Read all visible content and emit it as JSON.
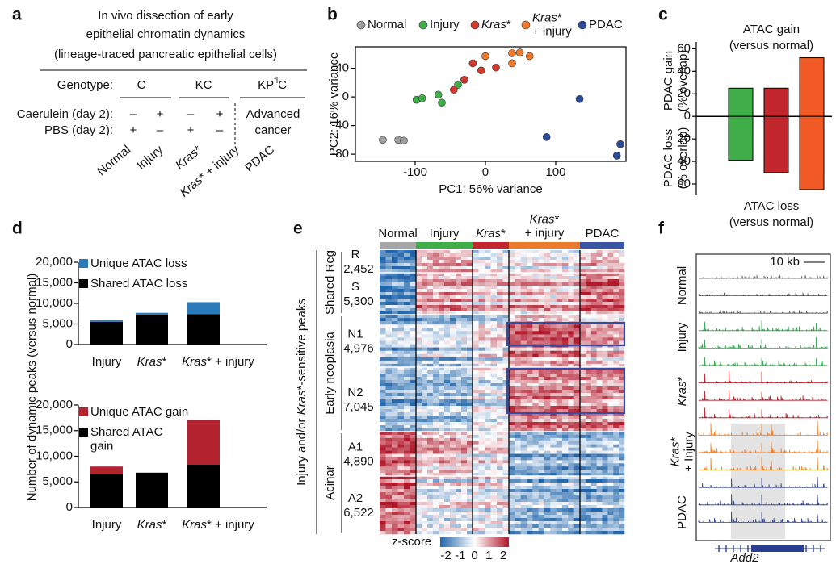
{
  "panel_labels": [
    "a",
    "b",
    "c",
    "d",
    "e",
    "f"
  ],
  "panel_a": {
    "title": [
      "In vivo dissection of early",
      "epithelial chromatin dynamics",
      "(lineage-traced pancreatic epithelial cells)"
    ],
    "genotype_label": "Genotype:",
    "genotypes": [
      "C",
      "KC",
      "KPflC"
    ],
    "caerulein_label": "Caerulein (day 2):",
    "caerulein": [
      "–",
      "+",
      "–",
      "+"
    ],
    "pbs_label": "PBS (day 2):",
    "pbs": [
      "+",
      "–",
      "+",
      "–"
    ],
    "advanced": [
      "Advanced",
      "cancer"
    ],
    "groups": [
      {
        "name": "Normal",
        "color": "#666666"
      },
      {
        "name": "Injury",
        "color": "#1e7a3a"
      },
      {
        "name": "Kras*",
        "color": "#b01c24"
      },
      {
        "name": "Kras* + injury",
        "color": "#ee7b2c"
      },
      {
        "name": "PDAC",
        "color": "#2c4a9a"
      }
    ]
  },
  "chart_data": [
    {
      "type": "scatter",
      "xlabel": "PC1: 56% variance",
      "ylabel": "PC2: 16% variance",
      "xlim": [
        -185,
        200
      ],
      "ylim": [
        -90,
        70
      ],
      "xticks": [
        -100,
        0,
        100
      ],
      "yticks": [
        -80,
        -40,
        0,
        40
      ],
      "series": [
        {
          "name": "Normal",
          "color": "#9e9e9e",
          "x": [
            -146,
            -124,
            -116
          ],
          "y": [
            -60,
            -60,
            -61
          ]
        },
        {
          "name": "Injury",
          "color": "#3fae49",
          "x": [
            -98,
            -90,
            -67,
            -62,
            -39
          ],
          "y": [
            -4,
            -2,
            3,
            -8,
            17
          ]
        },
        {
          "name": "Kras*",
          "color": "#d03a2f",
          "x": [
            -45,
            -30,
            -18,
            -6,
            15
          ],
          "y": [
            10,
            24,
            47,
            37,
            41
          ]
        },
        {
          "name": "Kras* + injury",
          "color": "#ee7b2c",
          "x": [
            0,
            38,
            49,
            63,
            38
          ],
          "y": [
            57,
            61,
            62,
            57,
            47
          ]
        },
        {
          "name": "PDAC",
          "color": "#2c4a9a",
          "x": [
            134,
            87,
            192,
            187
          ],
          "y": [
            -3,
            -56,
            -66,
            -82
          ]
        }
      ]
    },
    {
      "type": "bar",
      "ylabels": [
        "PDAC gain",
        "(% overlap)",
        "PDAC loss",
        "(% overlap)"
      ],
      "colors": [
        "#3fae49",
        "#c1272d",
        "#f15a24"
      ],
      "series": [
        {
          "name": "ATAC gain",
          "note": "(versus normal)",
          "values": [
            25,
            25,
            52
          ]
        },
        {
          "name": "ATAC loss",
          "note": "(versus normal)",
          "values": [
            -39,
            -50,
            -65
          ]
        }
      ],
      "ylim": [
        -70,
        66
      ],
      "yticks": [
        {
          "value": -60,
          "label": "60"
        },
        {
          "value": -40,
          "label": "40"
        },
        {
          "value": -20,
          "label": "20"
        },
        0,
        20,
        40,
        60
      ]
    },
    {
      "type": "stacked_bar",
      "ylabel": "Number of dynamic peaks (versus normal)",
      "categories": [
        "Injury",
        "Kras*",
        "Kras* + injury"
      ],
      "series": [
        {
          "name": "Shared ATAC loss",
          "color": "#000000",
          "values": [
            5500,
            7300,
            7400
          ]
        },
        {
          "name": "Unique ATAC loss",
          "color": "#2b7bba",
          "values": [
            400,
            400,
            2900
          ]
        }
      ],
      "ylim": [
        0,
        20000
      ],
      "yticks": [
        0,
        {
          "value": 5000,
          "label": "5,000"
        },
        {
          "value": 10000,
          "label": "10,000"
        },
        {
          "value": 15000,
          "label": "15,000"
        },
        {
          "value": 20000,
          "label": "20,000"
        }
      ]
    },
    {
      "type": "stacked_bar",
      "categories": [
        "Injury",
        "Kras*",
        "Kras* + injury"
      ],
      "series": [
        {
          "name": "Shared ATAC gain",
          "color": "#000000",
          "values": [
            6500,
            6800,
            8400
          ]
        },
        {
          "name": "Unique ATAC gain",
          "color": "#b2232f",
          "values": [
            1500,
            0,
            8700
          ]
        }
      ],
      "ylim": [
        0,
        20000
      ],
      "yticks": [
        0,
        {
          "value": 5000,
          "label": "5,000"
        },
        {
          "value": 10000,
          "label": "10,000"
        },
        {
          "value": 15000,
          "label": "15,000"
        },
        {
          "value": 20000,
          "label": "20,000"
        }
      ]
    }
  ],
  "panel_e": {
    "columns": [
      {
        "name": "Normal",
        "color": "#a6a6a6"
      },
      {
        "name": "Injury",
        "color": "#3fae49"
      },
      {
        "name": "Kras*",
        "color": "#c1272d"
      },
      {
        "name": "Kras* + injury",
        "color": "#ee7b2c"
      },
      {
        "name": "PDAC",
        "color": "#3a55a4"
      }
    ],
    "clusters": [
      {
        "name": "R",
        "count": "2,452"
      },
      {
        "name": "S",
        "count": "5,300"
      },
      {
        "name": "N1",
        "count": "4,976"
      },
      {
        "name": "N2",
        "count": "7,045"
      },
      {
        "name": "A1",
        "count": "4,890"
      },
      {
        "name": "A2",
        "count": "6,522"
      }
    ],
    "sections": [
      "Shared Reg",
      "Early neoplasia",
      "Acinar"
    ],
    "side_label": "Injury and/or Kras*-sensitive peaks",
    "colorbar_title": "z-score",
    "colorbar_ticks": [
      -2,
      -1,
      0,
      1,
      2
    ]
  },
  "panel_f": {
    "scale": "10 kb",
    "groups": [
      {
        "name": "Normal",
        "color": "#555555"
      },
      {
        "name": "Injury",
        "color": "#2e9e48"
      },
      {
        "name": "Kras*",
        "color": "#b01c24"
      },
      {
        "name": "Kras* + Injury",
        "color": "#f07c22"
      },
      {
        "name": "PDAC",
        "color": "#2c3e8f"
      }
    ],
    "gene": "Add2"
  }
}
